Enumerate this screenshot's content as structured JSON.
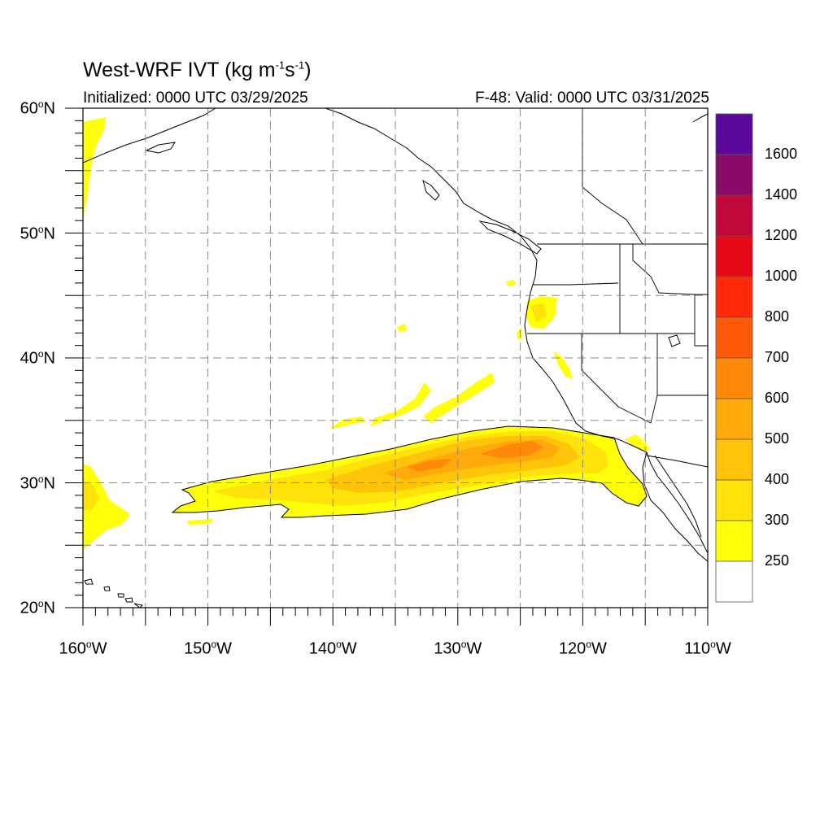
{
  "title": {
    "prefix": "West-WRF IVT (kg m",
    "exp1": "-1",
    "middle": "s",
    "exp2": "-1",
    "suffix": ")"
  },
  "subtitle_left": "Initialized: 0000 UTC 03/29/2025",
  "subtitle_right": "F-48: Valid: 0000 UTC 03/31/2025",
  "lat_labels": [
    {
      "value": "60",
      "hemi": "N"
    },
    {
      "value": "50",
      "hemi": "N"
    },
    {
      "value": "40",
      "hemi": "N"
    },
    {
      "value": "30",
      "hemi": "N"
    },
    {
      "value": "20",
      "hemi": "N"
    }
  ],
  "lon_labels": [
    {
      "value": "160",
      "hemi": "W"
    },
    {
      "value": "150",
      "hemi": "W"
    },
    {
      "value": "140",
      "hemi": "W"
    },
    {
      "value": "130",
      "hemi": "W"
    },
    {
      "value": "120",
      "hemi": "W"
    },
    {
      "value": "110",
      "hemi": "W"
    }
  ],
  "colorbar": {
    "labels": [
      "1600",
      "1400",
      "1200",
      "1000",
      "800",
      "700",
      "600",
      "500",
      "400",
      "300",
      "250"
    ],
    "colors_top_to_bottom": [
      "#5a0a9a",
      "#8a0a6a",
      "#c0083a",
      "#e60a18",
      "#ff2a0a",
      "#ff5a0a",
      "#ff8a0a",
      "#ffaa0a",
      "#ffc40a",
      "#ffe20a",
      "#ffff0a",
      "#ffffff"
    ]
  },
  "ivt_colors": {
    "c250": "#ffff0a",
    "c300": "#ffe20a",
    "c400": "#ffc40a",
    "c500": "#ffaa0a",
    "c600": "#ff8a0a"
  },
  "map_extent": {
    "lon_min": -160,
    "lon_max": -110,
    "lat_min": 20,
    "lat_max": 60
  }
}
